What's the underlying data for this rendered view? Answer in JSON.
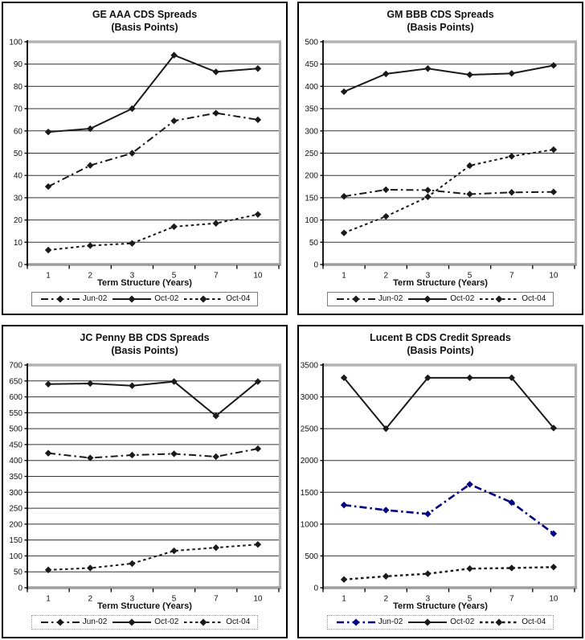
{
  "chart_data": [
    {
      "type": "line",
      "title": "GE AAA CDS Spreads",
      "subtitle": "(Basis Points)",
      "xlabel": "Term Structure (Years)",
      "categories": [
        "1",
        "2",
        "3",
        "5",
        "7",
        "10"
      ],
      "ylim": [
        0,
        100
      ],
      "yticks": [
        0,
        10,
        20,
        30,
        40,
        50,
        60,
        70,
        80,
        90,
        100
      ],
      "grid": true,
      "legend_position": "bottom",
      "legend_style": "solid",
      "series": [
        {
          "name": "Jun-02",
          "style": "dashdot",
          "color": "#1a1a1a",
          "marker": "diamond",
          "values": [
            35,
            44.5,
            50,
            64.5,
            68,
            65
          ]
        },
        {
          "name": "Oct-02",
          "style": "solid",
          "color": "#1a1a1a",
          "marker": "diamond",
          "values": [
            59.5,
            61,
            70,
            94,
            86.5,
            88
          ]
        },
        {
          "name": "Oct-04",
          "style": "dotted",
          "color": "#1a1a1a",
          "marker": "diamond",
          "values": [
            6.5,
            8.5,
            9.5,
            17,
            18.5,
            22.5
          ]
        }
      ]
    },
    {
      "type": "line",
      "title": "GM BBB CDS Spreads",
      "subtitle": "(Basis Points)",
      "xlabel": "Term Structure (Years)",
      "categories": [
        "1",
        "2",
        "3",
        "5",
        "7",
        "10"
      ],
      "ylim": [
        0,
        500
      ],
      "yticks": [
        0,
        50,
        100,
        150,
        200,
        250,
        300,
        350,
        400,
        450,
        500
      ],
      "grid": true,
      "legend_position": "bottom",
      "legend_style": "solid",
      "series": [
        {
          "name": "Jun-02",
          "style": "dashdot",
          "color": "#1a1a1a",
          "marker": "diamond",
          "values": [
            153,
            168,
            167,
            158,
            162,
            163
          ]
        },
        {
          "name": "Oct-02",
          "style": "solid",
          "color": "#1a1a1a",
          "marker": "diamond",
          "values": [
            388,
            428,
            440,
            426,
            429,
            447
          ]
        },
        {
          "name": "Oct-04",
          "style": "dotted",
          "color": "#1a1a1a",
          "marker": "diamond",
          "values": [
            71,
            108,
            152,
            222,
            243,
            258
          ]
        }
      ]
    },
    {
      "type": "line",
      "title": "JC Penny BB CDS Spreads",
      "subtitle": "(Basis Points)",
      "xlabel": "Term Structure (Years)",
      "categories": [
        "1",
        "2",
        "3",
        "5",
        "7",
        "10"
      ],
      "ylim": [
        0,
        700
      ],
      "yticks": [
        0,
        50,
        100,
        150,
        200,
        250,
        300,
        350,
        400,
        450,
        500,
        550,
        600,
        650,
        700
      ],
      "grid": true,
      "legend_position": "bottom",
      "legend_style": "dotted",
      "series": [
        {
          "name": "Jun-02",
          "style": "dashdot",
          "color": "#1a1a1a",
          "marker": "diamond",
          "values": [
            423,
            408,
            417,
            421,
            412,
            437
          ]
        },
        {
          "name": "Oct-02",
          "style": "solid",
          "color": "#1a1a1a",
          "marker": "diamond",
          "values": [
            640,
            642,
            635,
            648,
            540,
            648
          ]
        },
        {
          "name": "Oct-04",
          "style": "dotted",
          "color": "#1a1a1a",
          "marker": "diamond",
          "values": [
            56,
            62,
            76,
            116,
            126,
            136
          ]
        }
      ]
    },
    {
      "type": "line",
      "title": "Lucent B CDS Credit Spreads",
      "subtitle": "(Basis Points)",
      "xlabel": "Term Structure (Years)",
      "categories": [
        "1",
        "2",
        "3",
        "5",
        "7",
        "10"
      ],
      "ylim": [
        0,
        3500
      ],
      "yticks": [
        0,
        500,
        1000,
        1500,
        2000,
        2500,
        3000,
        3500
      ],
      "grid": true,
      "legend_position": "bottom",
      "legend_style": "dotted",
      "series": [
        {
          "name": "Jun-02",
          "style": "dashdot",
          "color": "#000080",
          "width": 2.6,
          "marker": "diamond",
          "values": [
            1300,
            1220,
            1160,
            1625,
            1340,
            850
          ]
        },
        {
          "name": "Oct-02",
          "style": "solid",
          "color": "#1a1a1a",
          "marker": "diamond",
          "values": [
            3300,
            2500,
            3300,
            3300,
            3300,
            2510
          ]
        },
        {
          "name": "Oct-04",
          "style": "dotted",
          "color": "#1a1a1a",
          "width": 2.4,
          "marker": "diamond",
          "values": [
            130,
            180,
            220,
            300,
            310,
            325
          ]
        }
      ]
    }
  ]
}
